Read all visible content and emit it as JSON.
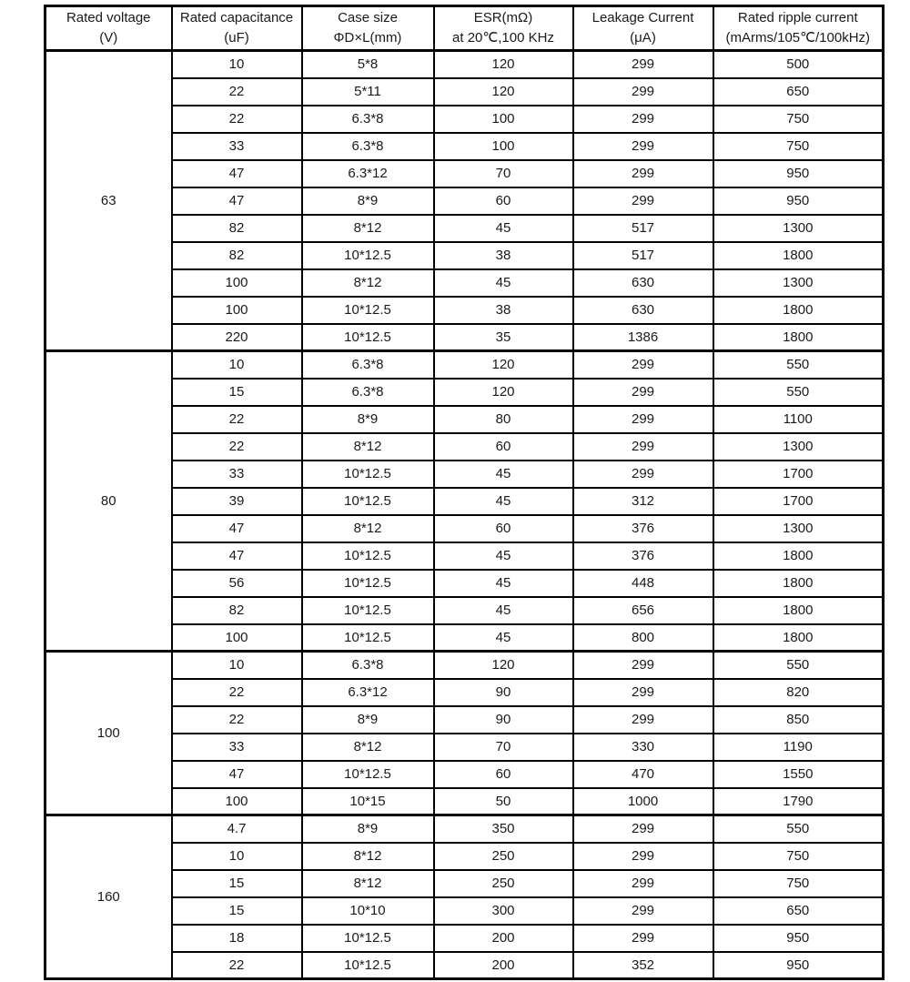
{
  "colors": {
    "border": "#000000",
    "text": "#1a1a1a",
    "background": "#ffffff"
  },
  "table": {
    "columns": [
      {
        "key": "rated-voltage",
        "line1": "Rated voltage",
        "line2": "(V)"
      },
      {
        "key": "rated-capacitance",
        "line1": "Rated capacitance",
        "line2": "(uF)"
      },
      {
        "key": "case-size",
        "line1": "Case size",
        "line2": "ΦD×L(mm)"
      },
      {
        "key": "esr",
        "line1": "ESR(mΩ)",
        "line2": "at 20℃,100 KHz"
      },
      {
        "key": "leakage-current",
        "line1": "Leakage Current",
        "line2": "(μA)"
      },
      {
        "key": "rated-ripple-current",
        "line1": "Rated ripple current",
        "line2": "(mArms/105℃/100kHz)"
      }
    ],
    "groups": [
      {
        "voltage": "63",
        "rows": [
          [
            "10",
            "5*8",
            "120",
            "299",
            "500"
          ],
          [
            "22",
            "5*11",
            "120",
            "299",
            "650"
          ],
          [
            "22",
            "6.3*8",
            "100",
            "299",
            "750"
          ],
          [
            "33",
            "6.3*8",
            "100",
            "299",
            "750"
          ],
          [
            "47",
            "6.3*12",
            "70",
            "299",
            "950"
          ],
          [
            "47",
            "8*9",
            "60",
            "299",
            "950"
          ],
          [
            "82",
            "8*12",
            "45",
            "517",
            "1300"
          ],
          [
            "82",
            "10*12.5",
            "38",
            "517",
            "1800"
          ],
          [
            "100",
            "8*12",
            "45",
            "630",
            "1300"
          ],
          [
            "100",
            "10*12.5",
            "38",
            "630",
            "1800"
          ],
          [
            "220",
            "10*12.5",
            "35",
            "1386",
            "1800"
          ]
        ]
      },
      {
        "voltage": "80",
        "rows": [
          [
            "10",
            "6.3*8",
            "120",
            "299",
            "550"
          ],
          [
            "15",
            "6.3*8",
            "120",
            "299",
            "550"
          ],
          [
            "22",
            "8*9",
            "80",
            "299",
            "1100"
          ],
          [
            "22",
            "8*12",
            "60",
            "299",
            "1300"
          ],
          [
            "33",
            "10*12.5",
            "45",
            "299",
            "1700"
          ],
          [
            "39",
            "10*12.5",
            "45",
            "312",
            "1700"
          ],
          [
            "47",
            "8*12",
            "60",
            "376",
            "1300"
          ],
          [
            "47",
            "10*12.5",
            "45",
            "376",
            "1800"
          ],
          [
            "56",
            "10*12.5",
            "45",
            "448",
            "1800"
          ],
          [
            "82",
            "10*12.5",
            "45",
            "656",
            "1800"
          ],
          [
            "100",
            "10*12.5",
            "45",
            "800",
            "1800"
          ]
        ]
      },
      {
        "voltage": "100",
        "rows": [
          [
            "10",
            "6.3*8",
            "120",
            "299",
            "550"
          ],
          [
            "22",
            "6.3*12",
            "90",
            "299",
            "820"
          ],
          [
            "22",
            "8*9",
            "90",
            "299",
            "850"
          ],
          [
            "33",
            "8*12",
            "70",
            "330",
            "1190"
          ],
          [
            "47",
            "10*12.5",
            "60",
            "470",
            "1550"
          ],
          [
            "100",
            "10*15",
            "50",
            "1000",
            "1790"
          ]
        ]
      },
      {
        "voltage": "160",
        "rows": [
          [
            "4.7",
            "8*9",
            "350",
            "299",
            "550"
          ],
          [
            "10",
            "8*12",
            "250",
            "299",
            "750"
          ],
          [
            "15",
            "8*12",
            "250",
            "299",
            "750"
          ],
          [
            "15",
            "10*10",
            "300",
            "299",
            "650"
          ],
          [
            "18",
            "10*12.5",
            "200",
            "299",
            "950"
          ],
          [
            "22",
            "10*12.5",
            "200",
            "352",
            "950"
          ]
        ]
      }
    ]
  }
}
